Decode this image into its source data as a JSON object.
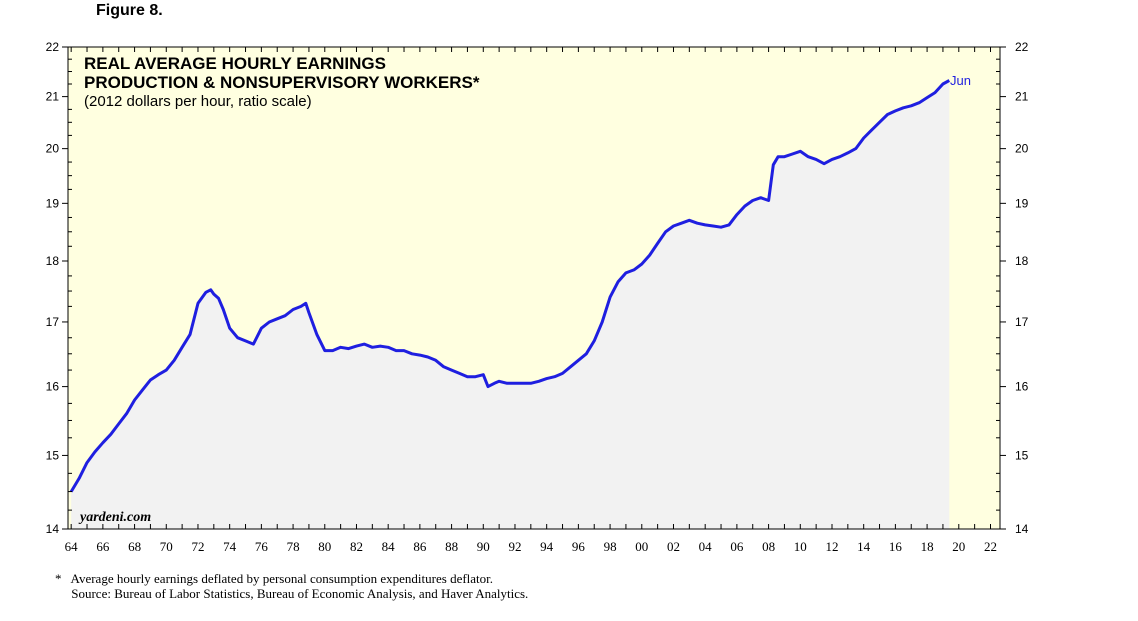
{
  "figure_label": "Figure 8.",
  "title_lines": [
    "REAL AVERAGE HOURLY EARNINGS",
    "PRODUCTION & NONSUPERVISORY WORKERS*"
  ],
  "subtitle": "(2012 dollars per hour, ratio scale)",
  "watermark": "yardeni.com",
  "end_label": "Jun",
  "footnote": {
    "note": "*   Average hourly earnings deflated by personal consumption expenditures deflator.",
    "source": "     Source: Bureau of Labor Statistics, Bureau of Economic Analysis, and Haver Analytics."
  },
  "colors": {
    "series": "#1f1fe0",
    "background": "#ffffe0",
    "area_fill": "#f2f2f2"
  },
  "chart_data": {
    "type": "area",
    "title": "REAL AVERAGE HOURLY EARNINGS PRODUCTION & NONSUPERVISORY WORKERS*",
    "subtitle": "(2012 dollars per hour, ratio scale)",
    "y_scale": "log",
    "ylim": [
      14,
      22
    ],
    "xlim": [
      1963.8,
      2022.6
    ],
    "y_ticks": [
      14,
      15,
      16,
      17,
      18,
      19,
      20,
      21,
      22
    ],
    "x_tick_labels": [
      "64",
      "66",
      "68",
      "70",
      "72",
      "74",
      "76",
      "78",
      "80",
      "82",
      "84",
      "86",
      "88",
      "90",
      "92",
      "94",
      "96",
      "98",
      "00",
      "02",
      "04",
      "06",
      "08",
      "10",
      "12",
      "14",
      "16",
      "18",
      "20",
      "22"
    ],
    "x_tick_years": [
      1964,
      1966,
      1968,
      1970,
      1972,
      1974,
      1976,
      1978,
      1980,
      1982,
      1984,
      1986,
      1988,
      1990,
      1992,
      1994,
      1996,
      1998,
      2000,
      2002,
      2004,
      2006,
      2008,
      2010,
      2012,
      2014,
      2016,
      2018,
      2020,
      2022
    ],
    "grid": false,
    "series": [
      {
        "x": [
          1964.0,
          1964.5,
          1965.0,
          1965.5,
          1966.0,
          1966.5,
          1967.0,
          1967.5,
          1968.0,
          1968.5,
          1969.0,
          1969.5,
          1970.0,
          1970.5,
          1971.0,
          1971.5,
          1972.0,
          1972.5,
          1972.8,
          1973.0,
          1973.3,
          1973.6,
          1974.0,
          1974.5,
          1975.0,
          1975.5,
          1976.0,
          1976.5,
          1977.0,
          1977.5,
          1978.0,
          1978.5,
          1978.8,
          1979.0,
          1979.5,
          1980.0,
          1980.5,
          1981.0,
          1981.5,
          1982.0,
          1982.5,
          1983.0,
          1983.5,
          1984.0,
          1984.5,
          1985.0,
          1985.5,
          1986.0,
          1986.5,
          1987.0,
          1987.5,
          1988.0,
          1988.5,
          1989.0,
          1989.5,
          1990.0,
          1990.3,
          1990.7,
          1991.0,
          1991.5,
          1992.0,
          1992.5,
          1993.0,
          1993.5,
          1994.0,
          1994.5,
          1995.0,
          1995.5,
          1996.0,
          1996.5,
          1997.0,
          1997.5,
          1998.0,
          1998.5,
          1999.0,
          1999.5,
          2000.0,
          2000.5,
          2001.0,
          2001.5,
          2002.0,
          2002.5,
          2003.0,
          2003.5,
          2004.0,
          2004.5,
          2005.0,
          2005.5,
          2006.0,
          2006.5,
          2007.0,
          2007.5,
          2008.0,
          2008.3,
          2008.6,
          2009.0,
          2009.5,
          2010.0,
          2010.5,
          2011.0,
          2011.5,
          2012.0,
          2012.5,
          2013.0,
          2013.5,
          2014.0,
          2014.5,
          2015.0,
          2015.5,
          2016.0,
          2016.5,
          2017.0,
          2017.5,
          2018.0,
          2018.5,
          2019.0,
          2019.4
        ],
        "values": [
          14.5,
          14.68,
          14.9,
          15.05,
          15.18,
          15.3,
          15.45,
          15.6,
          15.8,
          15.95,
          16.1,
          16.18,
          16.25,
          16.4,
          16.6,
          16.8,
          17.3,
          17.48,
          17.52,
          17.45,
          17.38,
          17.2,
          16.9,
          16.75,
          16.7,
          16.65,
          16.9,
          17.0,
          17.05,
          17.1,
          17.2,
          17.25,
          17.3,
          17.15,
          16.8,
          16.55,
          16.55,
          16.6,
          16.58,
          16.62,
          16.65,
          16.6,
          16.62,
          16.6,
          16.55,
          16.55,
          16.5,
          16.48,
          16.45,
          16.4,
          16.3,
          16.25,
          16.2,
          16.15,
          16.15,
          16.18,
          16.0,
          16.05,
          16.08,
          16.05,
          16.05,
          16.05,
          16.05,
          16.08,
          16.12,
          16.15,
          16.2,
          16.3,
          16.4,
          16.5,
          16.7,
          17.0,
          17.4,
          17.65,
          17.8,
          17.85,
          17.95,
          18.1,
          18.3,
          18.5,
          18.6,
          18.65,
          18.7,
          18.65,
          18.62,
          18.6,
          18.58,
          18.62,
          18.8,
          18.95,
          19.05,
          19.1,
          19.05,
          19.7,
          19.85,
          19.85,
          19.9,
          19.95,
          19.85,
          19.8,
          19.72,
          19.8,
          19.85,
          19.92,
          20.0,
          20.2,
          20.35,
          20.5,
          20.65,
          20.72,
          20.78,
          20.82,
          20.88,
          20.98,
          21.08,
          21.25,
          21.32
        ]
      }
    ]
  }
}
